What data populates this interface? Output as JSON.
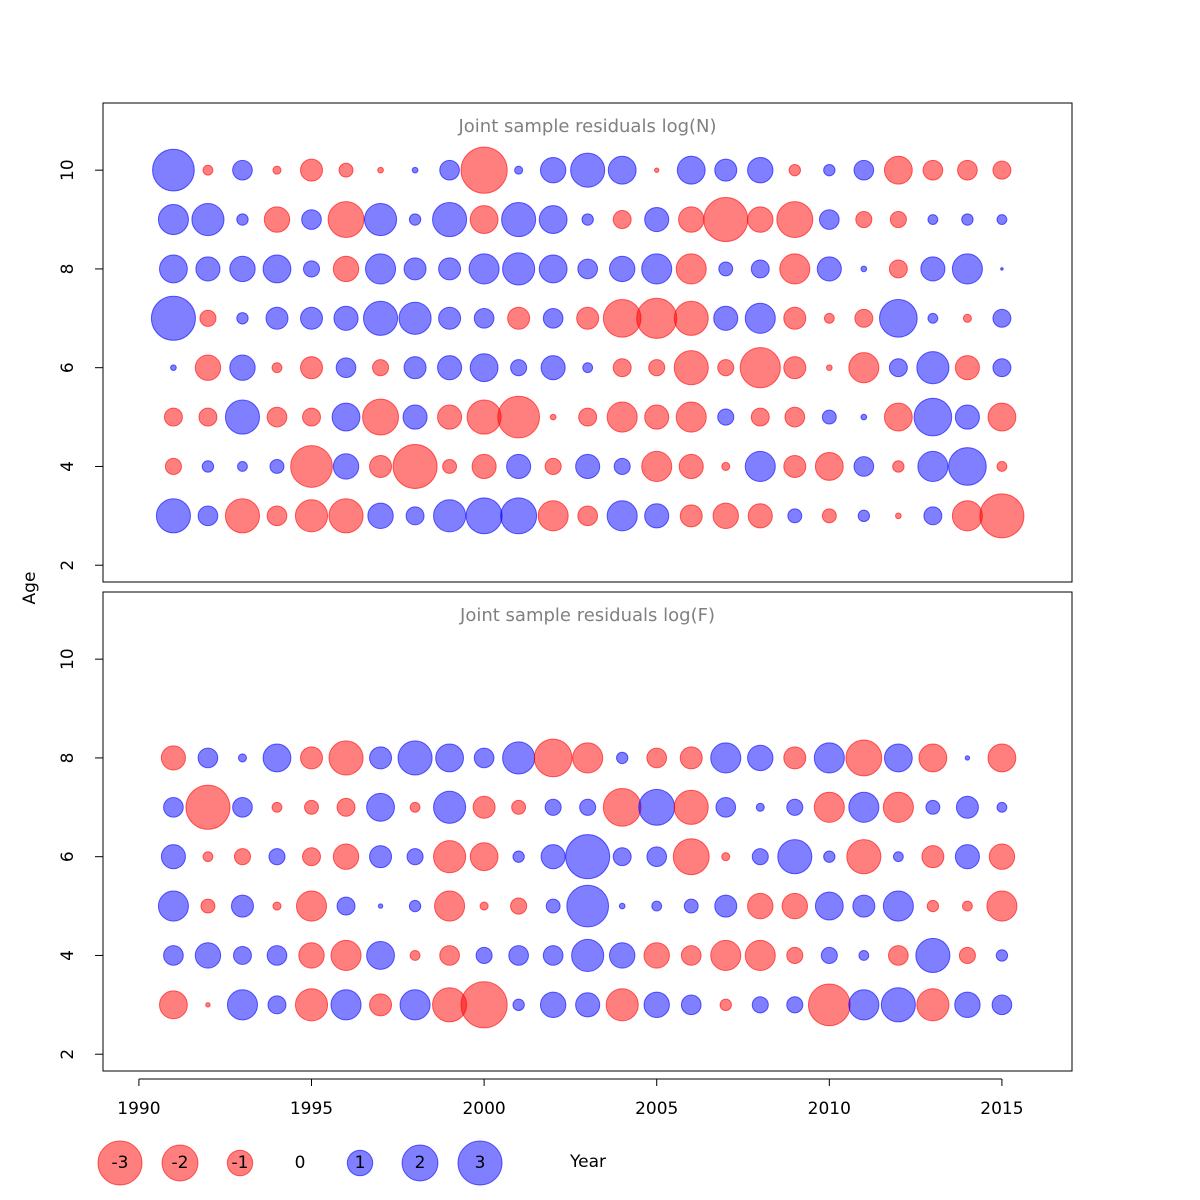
{
  "chart_data": {
    "type": "bubble",
    "xlabel": "Year",
    "ylabel": "Age",
    "x": [
      1991,
      1992,
      1993,
      1994,
      1995,
      1996,
      1997,
      1998,
      1999,
      2000,
      2001,
      2002,
      2003,
      2004,
      2005,
      2006,
      2007,
      2008,
      2009,
      2010,
      2011,
      2012,
      2013,
      2014,
      2015
    ],
    "xlim": [
      1988.96,
      2017.03
    ],
    "xticks": [
      1990,
      1995,
      2000,
      2005,
      2010,
      2015
    ],
    "positive_color": "#0000ff",
    "negative_color": "#ff0000",
    "size_legend": [
      -3,
      -2,
      -1,
      0,
      1,
      2,
      3
    ],
    "panels": [
      {
        "title": "Joint sample residuals log(N)",
        "ages": [
          10,
          9,
          8,
          7,
          6,
          5,
          4,
          3
        ],
        "ylim": [
          1.66,
          11.36
        ],
        "yticks": [
          2,
          4,
          6,
          8,
          10
        ],
        "residuals": [
          [
            2.7,
            -0.15,
            0.6,
            -0.1,
            -0.75,
            -0.3,
            -0.05,
            0.05,
            0.6,
            -3.3,
            0.1,
            1.0,
            1.8,
            1.2,
            -0.03,
            1.2,
            0.75,
            1.0,
            -0.2,
            0.2,
            0.6,
            -1.2,
            -0.6,
            -0.6,
            -0.5
          ],
          [
            1.4,
            1.6,
            0.2,
            -1.0,
            0.6,
            -2.0,
            1.6,
            0.2,
            1.8,
            -1.2,
            1.8,
            1.2,
            0.2,
            -0.5,
            0.9,
            -1.0,
            -3.0,
            -1.0,
            -2.0,
            0.6,
            -0.4,
            -0.4,
            0.15,
            0.2,
            0.15
          ],
          [
            1.2,
            0.9,
            1.0,
            1.2,
            0.4,
            -1.0,
            1.4,
            0.75,
            0.75,
            1.4,
            1.6,
            1.2,
            0.6,
            1.0,
            1.4,
            -1.4,
            0.3,
            0.5,
            -1.4,
            0.9,
            0.05,
            -0.5,
            0.9,
            1.4,
            0.01
          ],
          [
            3.0,
            -0.4,
            0.2,
            0.75,
            0.75,
            0.9,
            1.8,
            1.6,
            0.75,
            0.6,
            -0.75,
            0.6,
            -0.75,
            -2.2,
            -2.5,
            -1.8,
            0.9,
            1.4,
            -0.75,
            -0.15,
            -0.5,
            2.2,
            0.15,
            -0.1,
            0.5
          ],
          [
            0.05,
            -1.0,
            1.0,
            -0.15,
            -0.75,
            0.6,
            -0.4,
            0.75,
            0.9,
            1.2,
            0.4,
            0.9,
            0.15,
            -0.5,
            -0.4,
            -1.8,
            -0.4,
            -2.5,
            -0.75,
            -0.05,
            -1.4,
            0.5,
            1.6,
            -0.9,
            0.5
          ],
          [
            -0.5,
            -0.5,
            1.8,
            -0.6,
            -0.5,
            1.2,
            -2.0,
            0.9,
            -0.9,
            -1.8,
            -2.7,
            -0.05,
            -0.5,
            -1.4,
            -0.9,
            -1.4,
            0.4,
            -0.5,
            -0.6,
            0.3,
            0.05,
            -1.2,
            2.2,
            0.9,
            -1.2
          ],
          [
            -0.4,
            0.2,
            0.15,
            0.3,
            -2.7,
            1.0,
            -0.75,
            -3.0,
            -0.3,
            -0.9,
            0.9,
            -0.4,
            0.9,
            0.4,
            -1.4,
            -0.9,
            -0.1,
            1.4,
            -0.75,
            -1.2,
            0.6,
            -0.2,
            1.4,
            2.2,
            -0.15
          ],
          [
            1.8,
            0.6,
            -1.8,
            -0.6,
            -1.6,
            -1.8,
            1.0,
            0.5,
            1.6,
            2.0,
            2.0,
            -1.4,
            -0.6,
            1.4,
            0.9,
            -0.75,
            -1.0,
            -0.9,
            0.3,
            -0.3,
            0.2,
            -0.05,
            0.5,
            -1.4,
            -3.0
          ]
        ]
      },
      {
        "title": "Joint sample residuals log(F)",
        "ages": [
          8,
          7,
          6,
          5,
          4,
          3
        ],
        "ylim": [
          1.66,
          11.36
        ],
        "yticks": [
          2,
          4,
          6,
          8,
          10
        ],
        "residuals": [
          [
            -0.9,
            0.6,
            0.1,
            1.2,
            -0.75,
            -1.8,
            0.75,
            1.8,
            1.2,
            0.6,
            1.6,
            -2.2,
            -1.4,
            0.2,
            -0.6,
            -0.75,
            1.4,
            1.0,
            -0.75,
            1.4,
            -2.0,
            1.2,
            -1.2,
            0.03,
            -1.2
          ],
          [
            0.6,
            -3.0,
            0.6,
            -0.15,
            -0.3,
            -0.5,
            1.2,
            -0.15,
            1.6,
            -0.75,
            -0.3,
            0.4,
            0.4,
            -2.2,
            2.0,
            -1.8,
            0.6,
            0.1,
            0.4,
            -1.4,
            1.4,
            -1.4,
            0.3,
            0.75,
            0.15
          ],
          [
            0.9,
            -0.15,
            -0.4,
            0.4,
            -0.5,
            -1.0,
            0.75,
            0.4,
            -1.6,
            -1.2,
            0.2,
            0.9,
            3.0,
            0.5,
            0.6,
            -2.0,
            -0.1,
            0.4,
            1.8,
            0.2,
            -1.8,
            0.15,
            -0.75,
            0.9,
            -1.0
          ],
          [
            1.4,
            -0.3,
            0.75,
            -0.1,
            -1.4,
            0.5,
            0.03,
            0.2,
            -1.4,
            -0.1,
            -0.4,
            0.3,
            2.7,
            0.05,
            0.15,
            0.3,
            0.75,
            -1.0,
            -1.0,
            1.2,
            0.75,
            1.4,
            -0.2,
            -0.15,
            -1.4
          ],
          [
            0.6,
            1.0,
            0.5,
            0.6,
            -1.0,
            -1.4,
            1.2,
            -0.15,
            -0.6,
            0.4,
            0.6,
            0.6,
            1.6,
            1.0,
            -1.0,
            -0.6,
            -1.4,
            -1.4,
            -0.4,
            0.4,
            0.15,
            -0.6,
            1.8,
            -0.4,
            0.2
          ],
          [
            -1.2,
            -0.03,
            1.4,
            0.5,
            -1.6,
            1.4,
            -0.75,
            1.4,
            -1.8,
            -3.3,
            0.2,
            1.0,
            0.9,
            -1.6,
            1.0,
            0.6,
            -0.2,
            0.4,
            0.4,
            -2.7,
            1.4,
            1.8,
            -1.6,
            1.0,
            0.6
          ]
        ]
      }
    ]
  }
}
